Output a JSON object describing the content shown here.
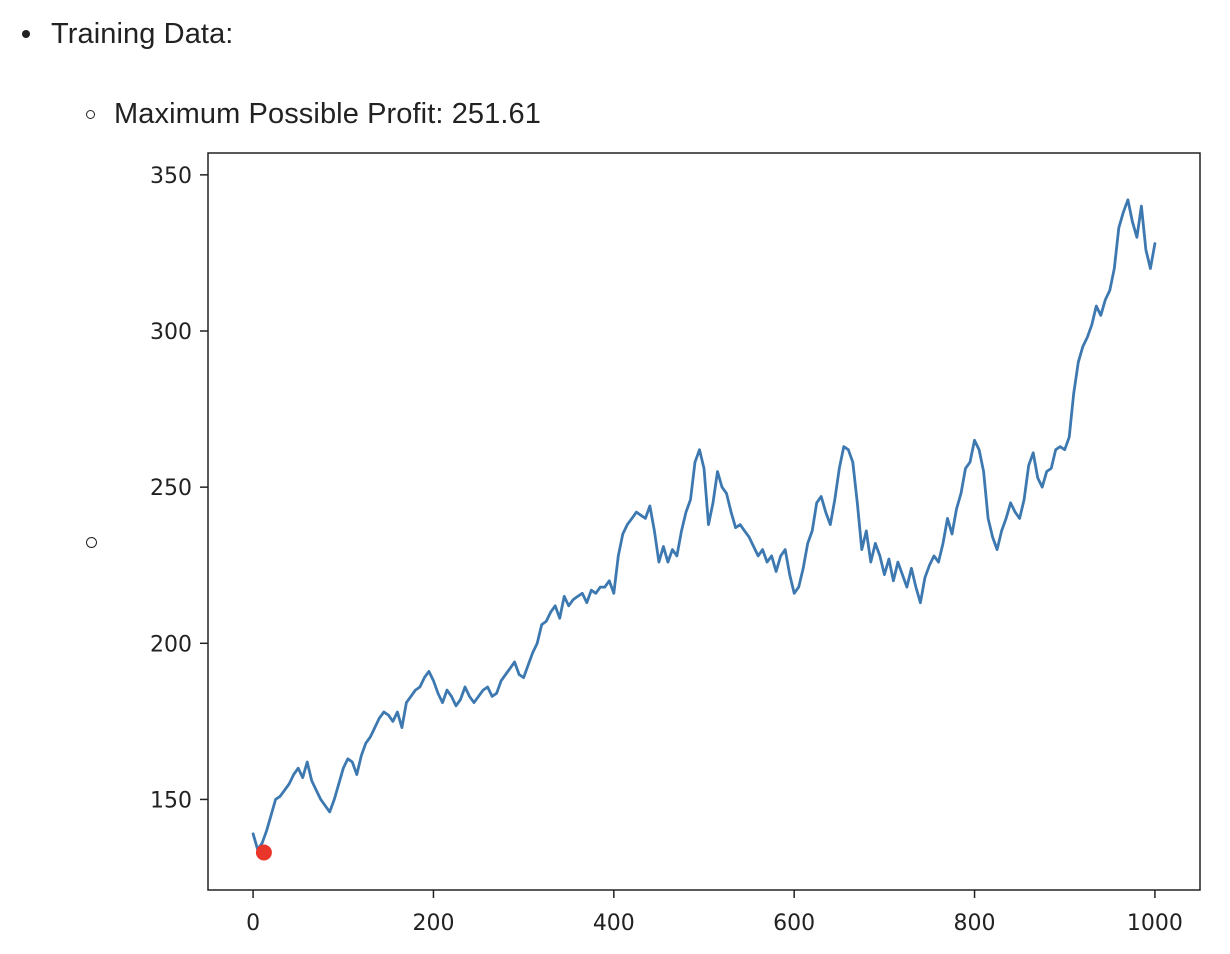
{
  "list": {
    "item1": "Training Data:",
    "item2": "Maximum Possible Profit: 251.61"
  },
  "chart_data": {
    "type": "line",
    "title": "",
    "xlabel": "",
    "ylabel": "",
    "xlim": [
      -50,
      1050
    ],
    "ylim": [
      121,
      357
    ],
    "xticks": [
      0,
      200,
      400,
      600,
      800,
      1000
    ],
    "yticks": [
      150,
      200,
      250,
      300,
      350
    ],
    "grid": false,
    "line_color": "#3d79b0",
    "marker_color": "#e8372a",
    "series": [
      {
        "x": [
          0,
          5,
          10,
          15,
          20,
          25,
          30,
          35,
          40,
          45,
          50,
          55,
          60,
          65,
          70,
          75,
          80,
          85,
          90,
          95,
          100,
          105,
          110,
          115,
          120,
          125,
          130,
          135,
          140,
          145,
          150,
          155,
          160,
          165,
          170,
          175,
          180,
          185,
          190,
          195,
          200,
          205,
          210,
          215,
          220,
          225,
          230,
          235,
          240,
          245,
          250,
          255,
          260,
          265,
          270,
          275,
          280,
          285,
          290,
          295,
          300,
          305,
          310,
          315,
          320,
          325,
          330,
          335,
          340,
          345,
          350,
          355,
          360,
          365,
          370,
          375,
          380,
          385,
          390,
          395,
          400,
          405,
          410,
          415,
          420,
          425,
          430,
          435,
          440,
          445,
          450,
          455,
          460,
          465,
          470,
          475,
          480,
          485,
          490,
          495,
          500,
          505,
          510,
          515,
          520,
          525,
          530,
          535,
          540,
          545,
          550,
          555,
          560,
          565,
          570,
          575,
          580,
          585,
          590,
          595,
          600,
          605,
          610,
          615,
          620,
          625,
          630,
          635,
          640,
          645,
          650,
          655,
          660,
          665,
          670,
          675,
          680,
          685,
          690,
          695,
          700,
          705,
          710,
          715,
          720,
          725,
          730,
          735,
          740,
          745,
          750,
          755,
          760,
          765,
          770,
          775,
          780,
          785,
          790,
          795,
          800,
          805,
          810,
          815,
          820,
          825,
          830,
          835,
          840,
          845,
          850,
          855,
          860,
          865,
          870,
          875,
          880,
          885,
          890,
          895,
          900,
          905,
          910,
          915,
          920,
          925,
          930,
          935,
          940,
          945,
          950,
          955,
          960,
          965,
          970,
          975,
          980,
          985,
          990,
          995,
          1000
        ],
        "values": [
          139,
          134,
          136,
          140,
          145,
          150,
          151,
          153,
          155,
          158,
          160,
          157,
          162,
          156,
          153,
          150,
          148,
          146,
          150,
          155,
          160,
          163,
          162,
          158,
          164,
          168,
          170,
          173,
          176,
          178,
          177,
          175,
          178,
          173,
          181,
          183,
          185,
          186,
          189,
          191,
          188,
          184,
          181,
          185,
          183,
          180,
          182,
          186,
          183,
          181,
          183,
          185,
          186,
          183,
          184,
          188,
          190,
          192,
          194,
          190,
          189,
          193,
          197,
          200,
          206,
          207,
          210,
          212,
          208,
          215,
          212,
          214,
          215,
          216,
          213,
          217,
          216,
          218,
          218,
          220,
          216,
          228,
          235,
          238,
          240,
          242,
          241,
          240,
          244,
          236,
          226,
          231,
          226,
          230,
          228,
          236,
          242,
          246,
          258,
          262,
          256,
          238,
          245,
          255,
          250,
          248,
          242,
          237,
          238,
          236,
          234,
          231,
          228,
          230,
          226,
          228,
          223,
          228,
          230,
          222,
          216,
          218,
          224,
          232,
          236,
          245,
          247,
          242,
          238,
          246,
          256,
          263,
          262,
          258,
          245,
          230,
          236,
          226,
          232,
          228,
          222,
          227,
          220,
          226,
          222,
          218,
          224,
          218,
          213,
          221,
          225,
          228,
          226,
          232,
          240,
          235,
          243,
          248,
          256,
          258,
          265,
          262,
          255,
          240,
          234,
          230,
          236,
          240,
          245,
          242,
          240,
          246,
          257,
          261,
          253,
          250,
          255,
          256,
          262,
          263,
          262,
          266,
          280,
          290,
          295,
          298,
          302,
          308,
          305,
          310,
          313,
          320,
          333,
          338,
          342,
          335,
          330,
          340,
          326,
          320,
          328
        ]
      }
    ],
    "marker": {
      "x": 12,
      "value": 133
    }
  }
}
